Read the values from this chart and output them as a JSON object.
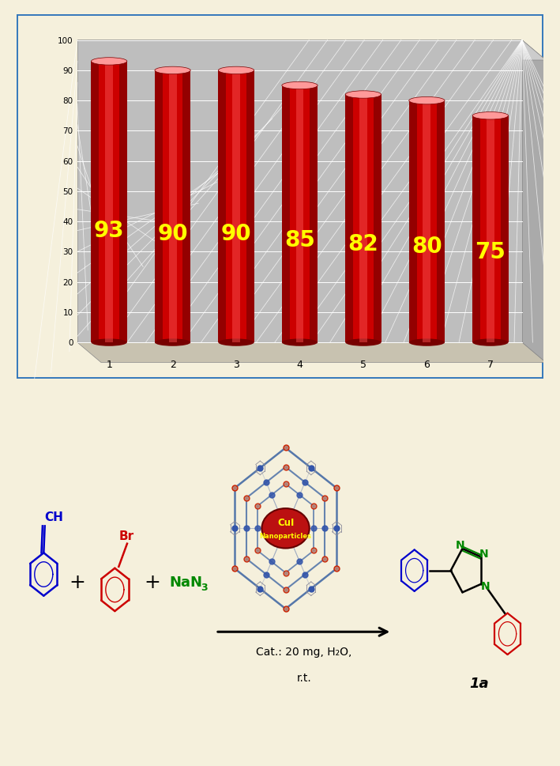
{
  "categories": [
    "1",
    "2",
    "3",
    "4",
    "5",
    "6",
    "7"
  ],
  "values": [
    93,
    90,
    90,
    85,
    82,
    80,
    75
  ],
  "bar_color_main": "#CC0000",
  "bar_color_light": "#FF5555",
  "bar_color_top": "#FF9999",
  "bar_color_dark": "#770000",
  "label_color": "#FFFF00",
  "label_fontsize": 20,
  "ytick_values": [
    0,
    10,
    20,
    30,
    40,
    50,
    60,
    70,
    80,
    90,
    100
  ],
  "chart_bg": "#BEBEBE",
  "floor_bg": "#C8C2B0",
  "side_bg": "#AAAAAA",
  "outer_bg": "#F5F0DC",
  "border_color": "#3377BB",
  "arrow_text_line1": "Cat.: 20 mg, H₂O,",
  "arrow_text_line2": "r.t.",
  "product_label": "1a",
  "reagent1_color": "#0000CC",
  "reagent2_color": "#CC0000",
  "reagent3_color": "#008800",
  "product_N_color": "#008800",
  "product_blue_color": "#0000CC",
  "product_red_color": "#CC0000"
}
